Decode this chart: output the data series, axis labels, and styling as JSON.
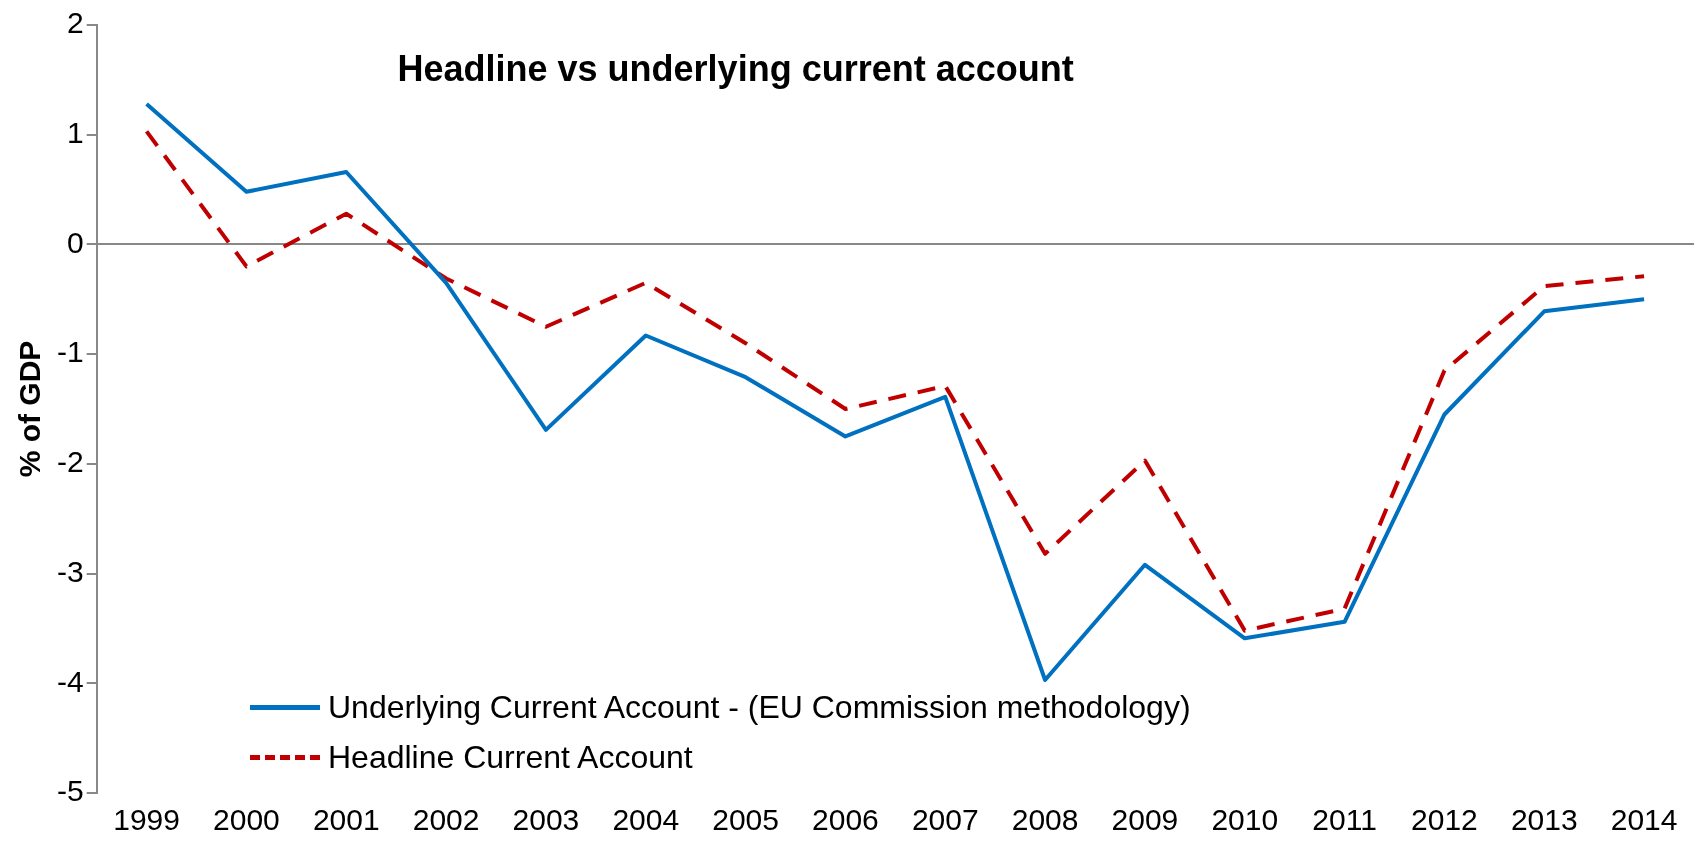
{
  "chart_data": {
    "type": "line",
    "title": "Headline vs underlying current account",
    "ylabel": "% of GDP",
    "categories": [
      "1999",
      "2000",
      "2001",
      "2002",
      "2003",
      "2004",
      "2005",
      "2006",
      "2007",
      "2008",
      "2009",
      "2010",
      "2011",
      "2012",
      "2013",
      "2014"
    ],
    "series": [
      {
        "name": "Underlying Current Account - (EU Commission methodology)",
        "color": "#0070c0",
        "line_style": "solid",
        "values": [
          1.28,
          0.48,
          0.66,
          -0.35,
          -1.69,
          -0.83,
          -1.21,
          -1.75,
          -1.39,
          -3.97,
          -2.92,
          -3.59,
          -3.44,
          -1.55,
          -0.61,
          -0.5
        ]
      },
      {
        "name": "Headline Current Account",
        "color": "#c00000",
        "line_style": "dashed",
        "values": [
          1.03,
          -0.2,
          0.28,
          -0.31,
          -0.75,
          -0.35,
          -0.9,
          -1.5,
          -1.29,
          -2.82,
          -1.97,
          -3.52,
          -3.32,
          -1.15,
          -0.38,
          -0.29
        ]
      }
    ],
    "ylim": [
      -5,
      2
    ],
    "yticks": [
      -5,
      -4,
      -3,
      -2,
      -1,
      0,
      1,
      2
    ],
    "legend": "bottom left",
    "marker": "none"
  }
}
